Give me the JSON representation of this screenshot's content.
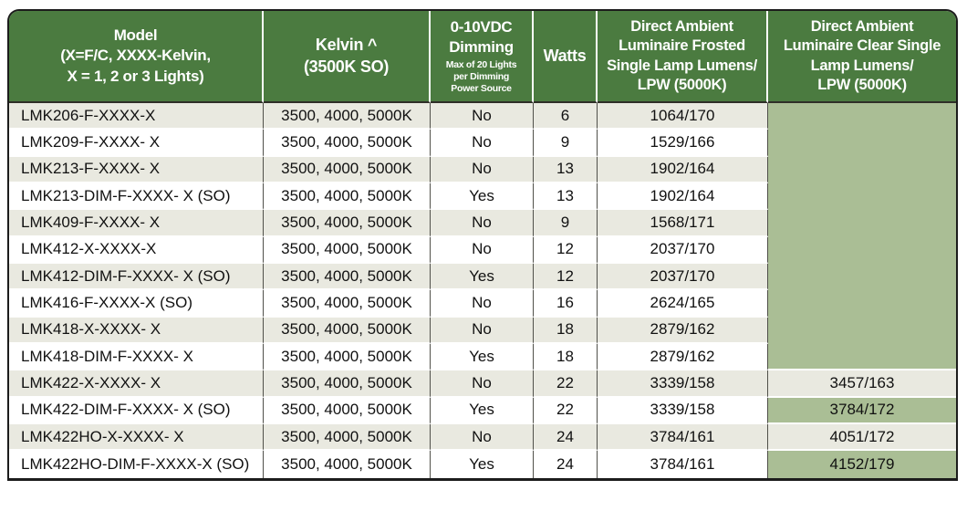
{
  "table": {
    "title": "LED luminaire model specifications",
    "header": {
      "model": "Model\n(X=F/C, XXXX-Kelvin,\nX = 1, 2 or 3 Lights)",
      "kelvin": "Kelvin ^\n(3500K SO)",
      "dimming": "0-10VDC\nDimming",
      "dimming_note": "Max of 20 Lights\nper Dimming\nPower Source",
      "watts": "Watts",
      "frosted": "Direct Ambient\nLuminaire Frosted\nSingle Lamp Lumens/\nLPW (5000K)",
      "clear": "Direct Ambient\nLuminaire Clear Single\nLamp Lumens/\nLPW (5000K)"
    },
    "rows": [
      {
        "model": "LMK206-F-XXXX-X",
        "kelvin": "3500, 4000, 5000K",
        "dimming": "No",
        "watts": "6",
        "frosted": "1064/170",
        "clear": null,
        "clear_green": false
      },
      {
        "model": "LMK209-F-XXXX- X",
        "kelvin": "3500, 4000, 5000K",
        "dimming": "No",
        "watts": "9",
        "frosted": "1529/166",
        "clear": null,
        "clear_green": false
      },
      {
        "model": "LMK213-F-XXXX- X",
        "kelvin": "3500, 4000, 5000K",
        "dimming": "No",
        "watts": "13",
        "frosted": "1902/164",
        "clear": null,
        "clear_green": false
      },
      {
        "model": "LMK213-DIM-F-XXXX- X (SO)",
        "kelvin": "3500, 4000, 5000K",
        "dimming": "Yes",
        "watts": "13",
        "frosted": "1902/164",
        "clear": null,
        "clear_green": false
      },
      {
        "model": "LMK409-F-XXXX- X",
        "kelvin": "3500, 4000, 5000K",
        "dimming": "No",
        "watts": "9",
        "frosted": "1568/171",
        "clear": null,
        "clear_green": false
      },
      {
        "model": "LMK412-X-XXXX-X",
        "kelvin": "3500, 4000, 5000K",
        "dimming": "No",
        "watts": "12",
        "frosted": "2037/170",
        "clear": null,
        "clear_green": false
      },
      {
        "model": "LMK412-DIM-F-XXXX- X (SO)",
        "kelvin": "3500, 4000, 5000K",
        "dimming": "Yes",
        "watts": "12",
        "frosted": "2037/170",
        "clear": null,
        "clear_green": false
      },
      {
        "model": "LMK416-F-XXXX-X (SO)",
        "kelvin": "3500, 4000, 5000K",
        "dimming": "No",
        "watts": "16",
        "frosted": "2624/165",
        "clear": null,
        "clear_green": false
      },
      {
        "model": "LMK418-X-XXXX- X",
        "kelvin": "3500, 4000, 5000K",
        "dimming": "No",
        "watts": "18",
        "frosted": "2879/162",
        "clear": null,
        "clear_green": false
      },
      {
        "model": "LMK418-DIM-F-XXXX- X",
        "kelvin": "3500, 4000, 5000K",
        "dimming": "Yes",
        "watts": "18",
        "frosted": "2879/162",
        "clear": null,
        "clear_green": false
      },
      {
        "model": "LMK422-X-XXXX- X",
        "kelvin": "3500, 4000, 5000K",
        "dimming": "No",
        "watts": "22",
        "frosted": "3339/158",
        "clear": "3457/163",
        "clear_green": false
      },
      {
        "model": "LMK422-DIM-F-XXXX- X (SO)",
        "kelvin": "3500, 4000, 5000K",
        "dimming": "Yes",
        "watts": "22",
        "frosted": "3339/158",
        "clear": "3784/172",
        "clear_green": true
      },
      {
        "model": "LMK422HO-X-XXXX- X",
        "kelvin": "3500, 4000, 5000K",
        "dimming": "No",
        "watts": "24",
        "frosted": "3784/161",
        "clear": "4051/172",
        "clear_green": false
      },
      {
        "model": "LMK422HO-DIM-F-XXXX-X (SO)",
        "kelvin": "3500, 4000, 5000K",
        "dimming": "Yes",
        "watts": "24",
        "frosted": "3784/161",
        "clear": "4152/179",
        "clear_green": true
      }
    ]
  },
  "colors": {
    "header_green": "#4b7b40",
    "highlight_green": "#aabe95",
    "row_alt": "#e9e9e0",
    "border_dark": "#1c1c1c",
    "grid_dark": "#50504a",
    "white": "#ffffff"
  }
}
